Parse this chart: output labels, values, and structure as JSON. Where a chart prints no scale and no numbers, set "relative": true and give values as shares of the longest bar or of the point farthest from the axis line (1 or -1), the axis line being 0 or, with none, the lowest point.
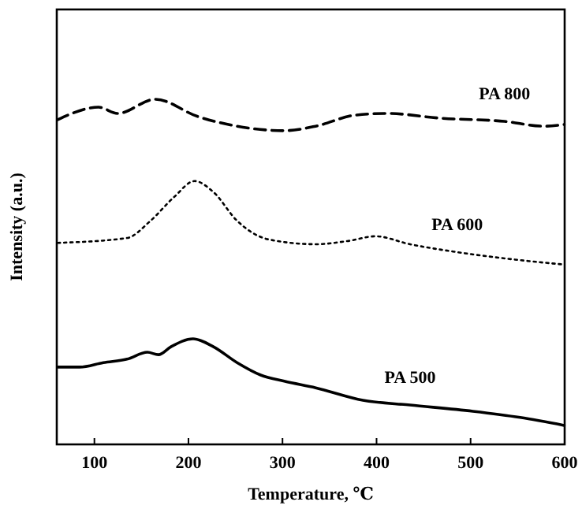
{
  "chart_data": {
    "type": "line",
    "relative": true,
    "xlabel": "Temperature, ℃",
    "ylabel": "Intensity (a.u.)",
    "xlim": [
      60,
      600
    ],
    "xticks": [
      100,
      200,
      300,
      400,
      500,
      600
    ],
    "series": [
      {
        "name": "PA 800",
        "color": "#000000",
        "line_style": "dashed",
        "x": [
          61,
          104.5,
          124.6,
          164.7,
          209.9,
          251.7,
          301.9,
          335.3,
          377.1,
          410.6,
          469.1,
          536,
          577.8,
          599.5
        ],
        "values": [
          0.941,
          0.977,
          0.959,
          1.0,
          0.95,
          0.922,
          0.909,
          0.922,
          0.954,
          0.959,
          0.945,
          0.936,
          0.922,
          0.927
        ]
      },
      {
        "name": "PA 600",
        "color": "#000000",
        "line_style": "dotted",
        "x": [
          61,
          134.6,
          159.7,
          184.8,
          206.5,
          226.6,
          251.7,
          285.2,
          335.3,
          368.8,
          398.8,
          435.6,
          485.8,
          536,
          599.5
        ],
        "values": [
          0.584,
          0.598,
          0.648,
          0.717,
          0.763,
          0.731,
          0.648,
          0.594,
          0.58,
          0.589,
          0.603,
          0.58,
          0.557,
          0.539,
          0.521
        ]
      },
      {
        "name": "PA 500",
        "color": "#000000",
        "line_style": "solid",
        "x": [
          61,
          84.4,
          109.5,
          134.6,
          156.4,
          168.1,
          181.4,
          204.9,
          226.6,
          251.7,
          276.8,
          301.9,
          335.3,
          385.5,
          435.6,
          502.5,
          552.7,
          599.5
        ],
        "values": [
          0.224,
          0.224,
          0.237,
          0.247,
          0.267,
          0.26,
          0.283,
          0.306,
          0.283,
          0.237,
          0.201,
          0.183,
          0.164,
          0.128,
          0.114,
          0.096,
          0.078,
          0.055
        ]
      }
    ]
  }
}
